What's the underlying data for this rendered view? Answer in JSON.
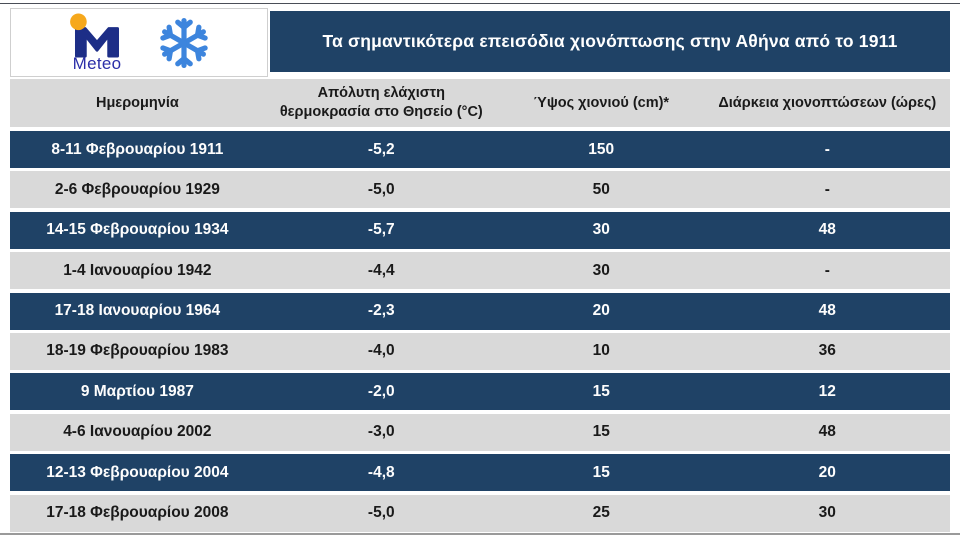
{
  "brand": {
    "name": "Meteo",
    "logo_icon": "meteo-m-icon",
    "snowflake_icon": "snowflake-icon"
  },
  "title": "Τα σημαντικότερα επεισόδια χιονόπτωσης στην Αθήνα από το 1911",
  "chart_data": {
    "type": "table",
    "title": "Τα σημαντικότερα επεισόδια χιονόπτωσης στην Αθήνα από το 1911",
    "columns": [
      "Ημερομηνία",
      "Απόλυτη ελάχιστη θερμοκρασία στο Θησείο (°C)",
      "Ύψος χιονιού (cm)*",
      "Διάρκεια χιονοπτώσεων (ώρες)"
    ],
    "rows": [
      [
        "8-11 Φεβρουαρίου 1911",
        "-5,2",
        "150",
        "-"
      ],
      [
        "2-6 Φεβρουαρίου 1929",
        "-5,0",
        "50",
        "-"
      ],
      [
        "14-15 Φεβρουαρίου 1934",
        "-5,7",
        "30",
        "48"
      ],
      [
        "1-4 Ιανουαρίου 1942",
        "-4,4",
        "30",
        "-"
      ],
      [
        "17-18 Ιανουαρίου 1964",
        "-2,3",
        "20",
        "48"
      ],
      [
        "18-19 Φεβρουαρίου 1983",
        "-4,0",
        "10",
        "36"
      ],
      [
        "9 Μαρτίου 1987",
        "-2,0",
        "15",
        "12"
      ],
      [
        "4-6 Ιανουαρίου 2002",
        "-3,0",
        "15",
        "48"
      ],
      [
        "12-13 Φεβρουαρίου 2004",
        "-4,8",
        "15",
        "20"
      ],
      [
        "17-18 Φεβρουαρίου 2008",
        "-5,0",
        "25",
        "30"
      ]
    ]
  },
  "colors": {
    "navy": "#1F4266",
    "row_gray": "#D9D9D9",
    "brand_blue": "#2B2FA8",
    "logo_navy": "#1D2E87",
    "logo_dot": "#F6A81C",
    "snowflake_blue": "#3D85DD"
  }
}
